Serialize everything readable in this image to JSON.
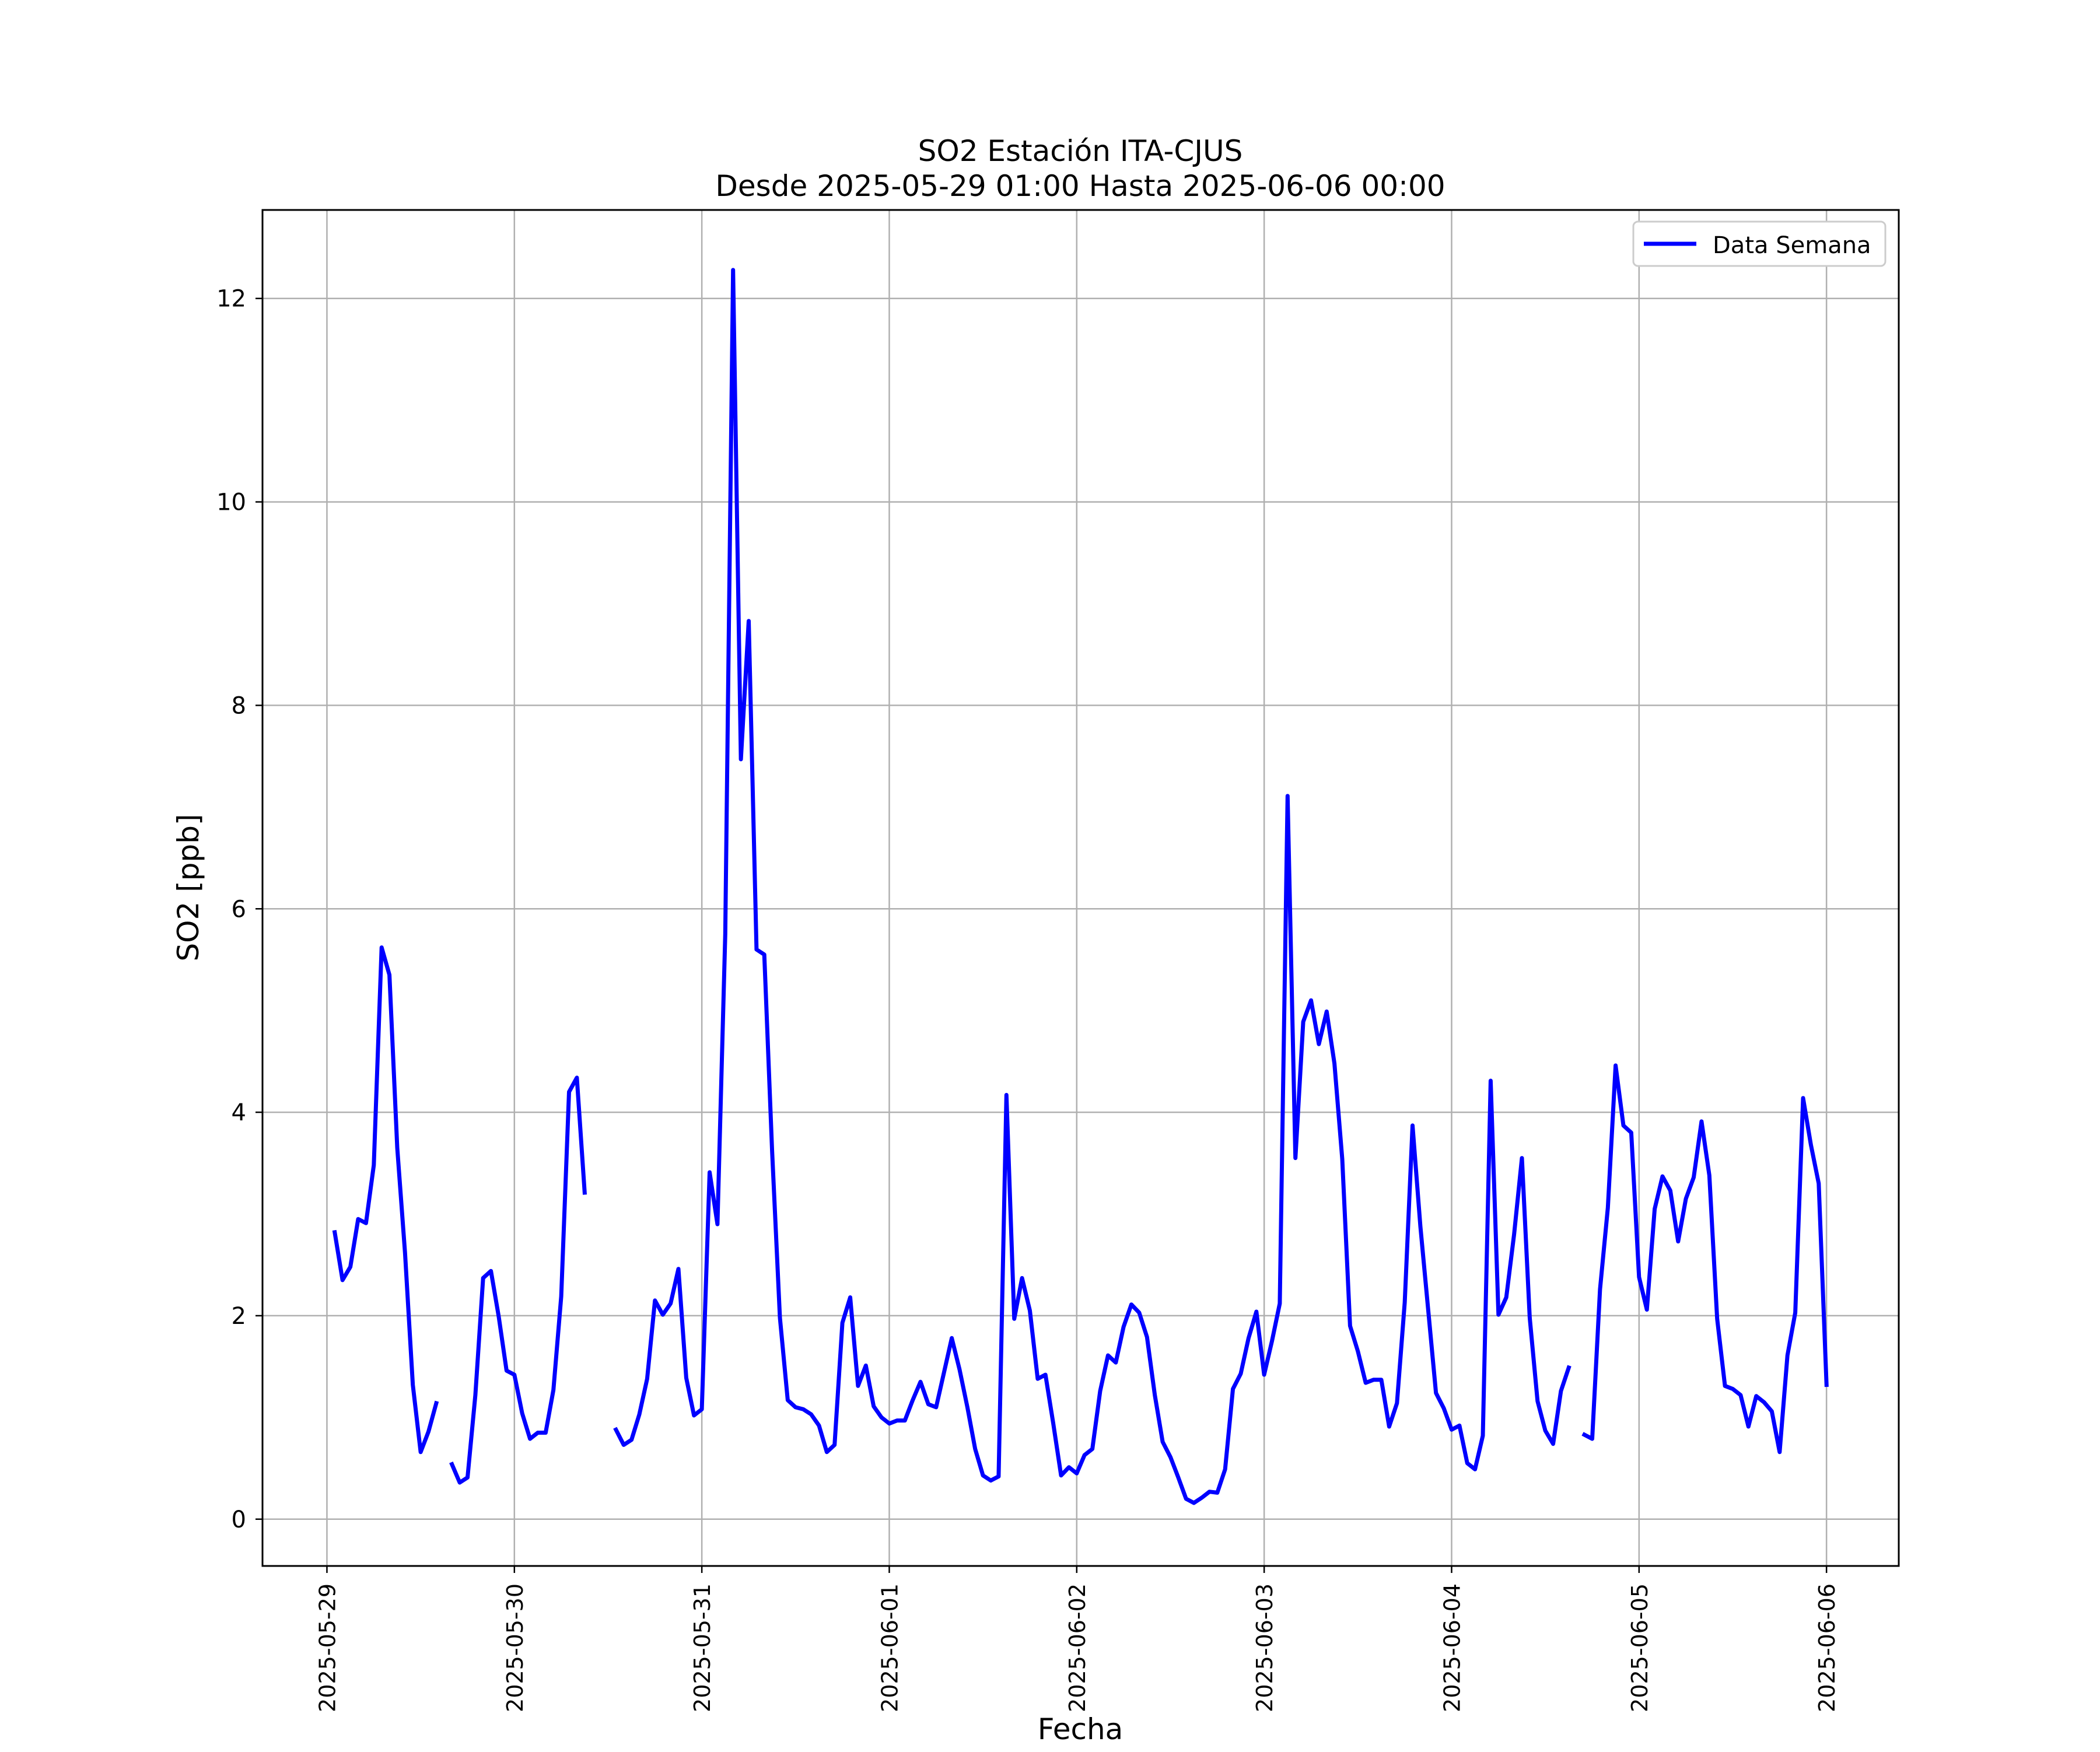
{
  "chart_data": {
    "type": "line",
    "title": "SO2 Estación ITA-CJUS",
    "subtitle": "Desde 2025-05-29 01:00 Hasta 2025-06-06 00:00",
    "xlabel": "Fecha",
    "ylabel": "SO2 [ppb]",
    "ylim": [
      -0.46,
      12.87
    ],
    "xlim": [
      "2025-05-28 15:45",
      "2025-06-06 09:15"
    ],
    "x_ticks": [
      "2025-05-29",
      "2025-05-30",
      "2025-05-31",
      "2025-06-01",
      "2025-06-02",
      "2025-06-03",
      "2025-06-04",
      "2025-06-05",
      "2025-06-06"
    ],
    "y_ticks": [
      0,
      2,
      4,
      6,
      8,
      10,
      12
    ],
    "grid": true,
    "legend": {
      "position": "top-right",
      "entries": [
        "Data Semana"
      ]
    },
    "series": [
      {
        "name": "Data Semana",
        "color": "#0000ff",
        "x_start": "2025-05-29 01:00",
        "x_step": "1 hour",
        "values": [
          2.82,
          2.35,
          2.48,
          2.95,
          2.91,
          3.48,
          5.62,
          5.35,
          3.65,
          2.62,
          1.32,
          0.66,
          0.86,
          1.14,
          null,
          0.54,
          0.36,
          0.41,
          1.22,
          2.37,
          2.44,
          1.99,
          1.46,
          1.42,
          1.04,
          0.79,
          0.85,
          0.85,
          1.27,
          2.19,
          4.2,
          4.34,
          3.21,
          null,
          null,
          null,
          0.88,
          0.73,
          0.78,
          1.03,
          1.38,
          2.15,
          2.01,
          2.12,
          2.46,
          1.39,
          1.02,
          1.08,
          3.41,
          2.9,
          5.75,
          12.28,
          7.47,
          8.83,
          5.6,
          5.55,
          3.62,
          1.98,
          1.17,
          1.1,
          1.08,
          1.03,
          0.92,
          0.66,
          0.73,
          1.93,
          2.18,
          1.31,
          1.51,
          1.11,
          1.0,
          0.94,
          0.97,
          0.97,
          1.17,
          1.35,
          1.13,
          1.1,
          1.44,
          1.78,
          1.47,
          1.1,
          0.69,
          0.43,
          0.38,
          0.42,
          4.17,
          1.97,
          2.37,
          2.05,
          1.38,
          1.42,
          0.94,
          0.43,
          0.51,
          0.45,
          0.63,
          0.69,
          1.26,
          1.61,
          1.54,
          1.89,
          2.11,
          2.03,
          1.79,
          1.22,
          0.76,
          0.61,
          0.41,
          0.2,
          0.16,
          0.21,
          0.27,
          0.26,
          0.49,
          1.28,
          1.43,
          1.78,
          2.04,
          1.42,
          1.75,
          2.12,
          7.11,
          3.55,
          4.89,
          5.1,
          4.67,
          4.99,
          4.48,
          3.54,
          1.9,
          1.65,
          1.34,
          1.37,
          1.37,
          0.91,
          1.14,
          2.13,
          3.87,
          2.88,
          2.06,
          1.24,
          1.09,
          0.88,
          0.92,
          0.55,
          0.49,
          0.82,
          4.31,
          2.01,
          2.18,
          2.8,
          3.55,
          1.98,
          1.16,
          0.87,
          0.74,
          1.26,
          1.49,
          null,
          0.83,
          0.79,
          2.26,
          3.06,
          4.46,
          3.87,
          3.8,
          2.38,
          2.06,
          3.05,
          3.37,
          3.23,
          2.73,
          3.15,
          3.36,
          3.91,
          3.38,
          1.97,
          1.31,
          1.28,
          1.22,
          0.91,
          1.21,
          1.15,
          1.06,
          0.66,
          1.61,
          2.03,
          4.14,
          3.68,
          3.3,
          1.32
        ]
      }
    ]
  }
}
